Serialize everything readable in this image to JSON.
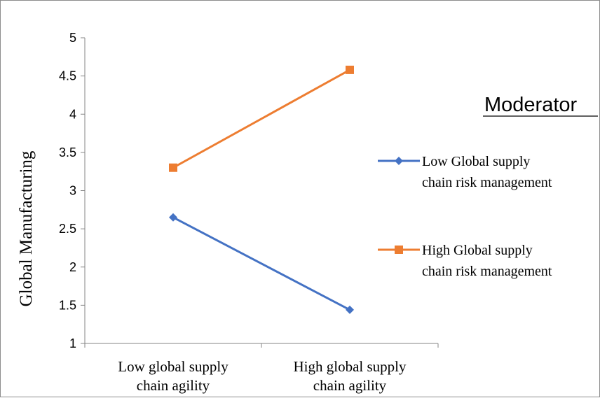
{
  "chart_data": {
    "type": "line",
    "categories": [
      [
        "Low global supply",
        "chain agility"
      ],
      [
        "High global supply",
        "chain agility"
      ]
    ],
    "ylabel": "Global Manufacturing",
    "ylim": [
      1,
      5
    ],
    "yticks": [
      "1",
      "1.5",
      "2",
      "2.5",
      "3",
      "3.5",
      "4",
      "4.5",
      "5"
    ],
    "grid": false,
    "legend_title": "Moderator",
    "legend_placement": "right",
    "series": [
      {
        "name": [
          "Low Global supply",
          "chain risk management"
        ],
        "values": [
          2.65,
          1.44
        ],
        "color": "#4472C4",
        "marker": "diamond"
      },
      {
        "name": [
          "High Global supply",
          "chain risk management"
        ],
        "values": [
          3.3,
          4.58
        ],
        "color": "#ED7D31",
        "marker": "square"
      }
    ]
  }
}
